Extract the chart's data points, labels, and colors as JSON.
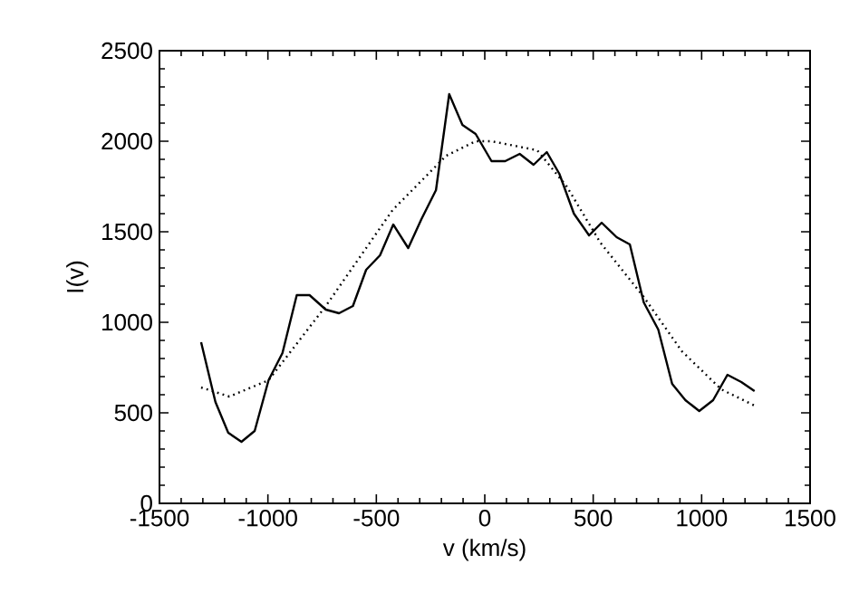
{
  "chart_data": {
    "type": "line",
    "xlabel": "v (km/s)",
    "ylabel": "I(v)",
    "xlim": [
      -1500,
      1500
    ],
    "ylim": [
      0,
      2500
    ],
    "xticks": [
      -1500,
      -1000,
      -500,
      0,
      500,
      1000,
      1500
    ],
    "yticks": [
      0,
      500,
      1000,
      1500,
      2000,
      2500
    ],
    "marker": "none",
    "series": [
      {
        "color": "#000000",
        "line_style": "solid",
        "x": [
          -1308,
          -1242,
          -1183,
          -1122,
          -1061,
          -997,
          -933,
          -867,
          -808,
          -733,
          -672,
          -608,
          -547,
          -483,
          -422,
          -353,
          -292,
          -225,
          -164,
          -103,
          -42,
          31,
          94,
          161,
          225,
          286,
          344,
          411,
          481,
          539,
          608,
          669,
          733,
          800,
          864,
          925,
          989,
          1053,
          1119,
          1183,
          1244
        ],
        "values": [
          890,
          560,
          390,
          340,
          400,
          680,
          830,
          1150,
          1150,
          1070,
          1050,
          1090,
          1290,
          1370,
          1540,
          1410,
          1570,
          1730,
          2260,
          2090,
          2040,
          1890,
          1890,
          1930,
          1870,
          1940,
          1820,
          1600,
          1480,
          1550,
          1470,
          1430,
          1110,
          960,
          660,
          570,
          510,
          570,
          710,
          670,
          620
        ]
      },
      {
        "color": "#000000",
        "line_style": "dotted",
        "x": [
          -1308,
          -1178,
          -997,
          -733,
          -425,
          -178,
          -42,
          31,
          242,
          378,
          533,
          733,
          909,
          1090,
          1244
        ],
        "values": [
          640,
          590,
          680,
          1090,
          1620,
          1920,
          2000,
          2000,
          1950,
          1750,
          1440,
          1140,
          840,
          630,
          540
        ]
      }
    ]
  }
}
